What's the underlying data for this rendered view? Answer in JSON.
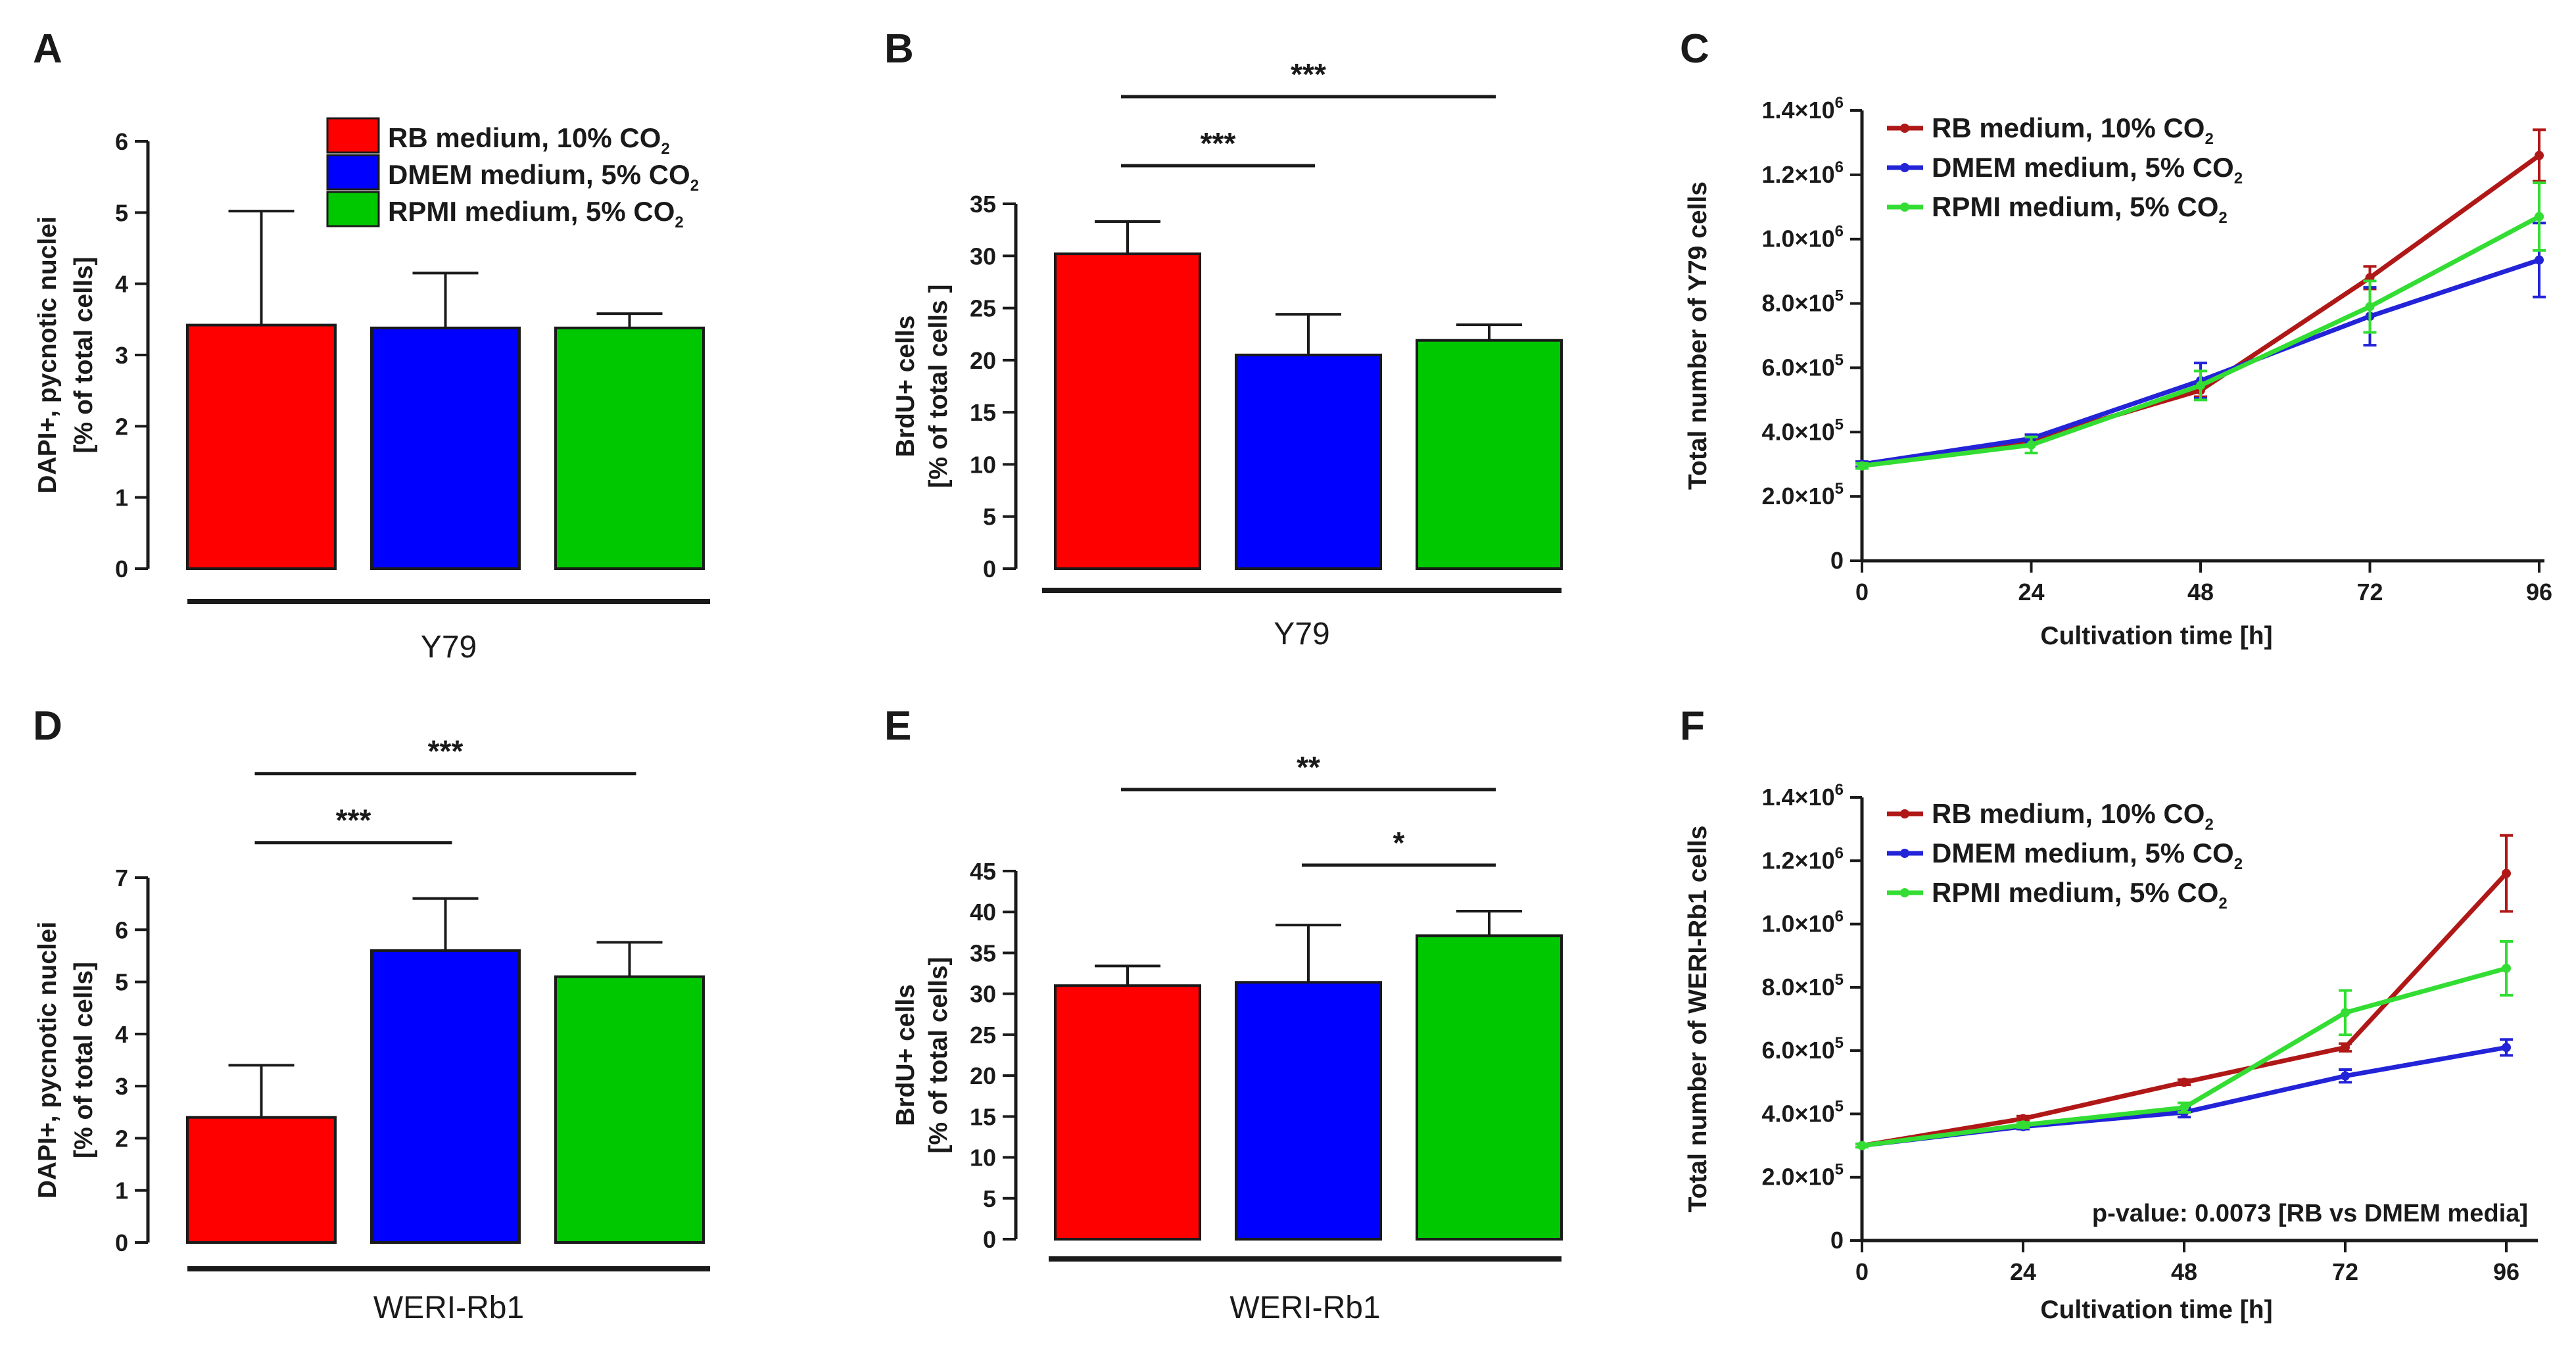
{
  "colors": {
    "red": "#ff0000",
    "blue": "#0000ff",
    "green": "#00c800",
    "dark_red": "#b01818",
    "line_blue": "#2323d8",
    "line_green": "#33dd33",
    "axis": "#1a1a1a"
  },
  "panels": {
    "A": {
      "letter": "A"
    },
    "B": {
      "letter": "B"
    },
    "C": {
      "letter": "C"
    },
    "D": {
      "letter": "D"
    },
    "E": {
      "letter": "E"
    },
    "F": {
      "letter": "F"
    }
  },
  "legend_A": {
    "items": [
      {
        "text": "RB medium, 10% CO",
        "sub": "2",
        "color": "#ff0000"
      },
      {
        "text": "DMEM medium, 5% CO",
        "sub": "2",
        "color": "#0000ff"
      },
      {
        "text": "RPMI medium, 5% CO",
        "sub": "2",
        "color": "#00c800"
      }
    ]
  },
  "f_note": "p-value: 0.0073 [RB vs DMEM media]",
  "chart_data": [
    {
      "id": "A",
      "type": "bar",
      "categories": [
        "RB medium, 10% CO2",
        "DMEM medium, 5% CO2",
        "RPMI medium, 5% CO2"
      ],
      "values": [
        3.42,
        3.38,
        3.38
      ],
      "errors": [
        1.6,
        0.77,
        0.2
      ],
      "colors": [
        "#ff0000",
        "#0000ff",
        "#00c800"
      ],
      "ylabel": [
        "DAPI+, pycnotic nuclei",
        "[% of total cells]"
      ],
      "group_label": "Y79",
      "ylim": [
        0,
        6
      ],
      "yticks": [
        "0",
        "1",
        "2",
        "3",
        "4",
        "5",
        "6"
      ],
      "significance": []
    },
    {
      "id": "B",
      "type": "bar",
      "categories": [
        "RB medium, 10% CO2",
        "DMEM medium, 5% CO2",
        "RPMI medium, 5% CO2"
      ],
      "values": [
        30.2,
        20.5,
        21.9
      ],
      "errors": [
        3.1,
        3.9,
        1.5
      ],
      "colors": [
        "#ff0000",
        "#0000ff",
        "#00c800"
      ],
      "ylabel": [
        "BrdU+ cells",
        "[% of total cells ]"
      ],
      "group_label": "Y79",
      "ylim": [
        0,
        35
      ],
      "yticks": [
        "0",
        "5",
        "10",
        "15",
        "20",
        "25",
        "30",
        "35"
      ],
      "significance": [
        {
          "from": 0,
          "to": 1,
          "label": "***"
        },
        {
          "from": 0,
          "to": 2,
          "label": "***"
        }
      ]
    },
    {
      "id": "C",
      "type": "line",
      "x": [
        0,
        24,
        48,
        72,
        96
      ],
      "xticks": [
        "0",
        "24",
        "48",
        "72",
        "96"
      ],
      "xlabel": "Cultivation time [h]",
      "ylabel": "Total number of  Y79 cells",
      "ylim": [
        0,
        1400000
      ],
      "yticks": [
        {
          "mant": "0",
          "exp": ""
        },
        {
          "mant": "2.0×10",
          "exp": "5"
        },
        {
          "mant": "4.0×10",
          "exp": "5"
        },
        {
          "mant": "6.0×10",
          "exp": "5"
        },
        {
          "mant": "8.0×10",
          "exp": "5"
        },
        {
          "mant": "1.0×10",
          "exp": "6"
        },
        {
          "mant": "1.2×10",
          "exp": "6"
        },
        {
          "mant": "1.4×10",
          "exp": "6"
        }
      ],
      "series": [
        {
          "name": "RB medium, 10% CO",
          "sub": "2",
          "color": "#b01818",
          "values": [
            300000,
            375000,
            530000,
            880000,
            1260000
          ],
          "errors": [
            8000,
            12000,
            20000,
            35000,
            80000
          ]
        },
        {
          "name": "DMEM medium, 5% CO",
          "sub": "2",
          "color": "#2323d8",
          "values": [
            300000,
            380000,
            560000,
            760000,
            935000
          ],
          "errors": [
            8000,
            12000,
            55000,
            90000,
            115000
          ]
        },
        {
          "name": "RPMI medium, 5% CO",
          "sub": "2",
          "color": "#33dd33",
          "values": [
            295000,
            360000,
            545000,
            790000,
            1070000
          ],
          "errors": [
            8000,
            25000,
            45000,
            80000,
            105000
          ]
        }
      ],
      "legend": "top-left"
    },
    {
      "id": "D",
      "type": "bar",
      "categories": [
        "RB medium, 10% CO2",
        "DMEM medium, 5% CO2",
        "RPMI medium, 5% CO2"
      ],
      "values": [
        2.4,
        5.6,
        5.1
      ],
      "errors": [
        1.0,
        1.0,
        0.66
      ],
      "colors": [
        "#ff0000",
        "#0000ff",
        "#00c800"
      ],
      "ylabel": [
        "DAPI+, pycnotic nuclei",
        "[% of total cells]"
      ],
      "group_label": "WERI-Rb1",
      "ylim": [
        0,
        7
      ],
      "yticks": [
        "0",
        "1",
        "2",
        "3",
        "4",
        "5",
        "6",
        "7"
      ],
      "significance": [
        {
          "from": 0,
          "to": 1,
          "label": "***"
        },
        {
          "from": 0,
          "to": 2,
          "label": "***"
        }
      ]
    },
    {
      "id": "E",
      "type": "bar",
      "categories": [
        "RB medium, 10% CO2",
        "DMEM medium, 5% CO2",
        "RPMI medium, 5% CO2"
      ],
      "values": [
        31.0,
        31.4,
        37.1
      ],
      "errors": [
        2.4,
        7.0,
        3.0
      ],
      "colors": [
        "#ff0000",
        "#0000ff",
        "#00c800"
      ],
      "ylabel": [
        "BrdU+ cells",
        "[% of total cells]"
      ],
      "group_label": "WERI-Rb1",
      "ylim": [
        0,
        45
      ],
      "yticks": [
        "0",
        "5",
        "10",
        "15",
        "20",
        "25",
        "30",
        "35",
        "40",
        "45"
      ],
      "significance": [
        {
          "from": 0,
          "to": 2,
          "label": "**"
        },
        {
          "from": 1,
          "to": 2,
          "label": "*"
        }
      ]
    },
    {
      "id": "F",
      "type": "line",
      "x": [
        0,
        24,
        48,
        72,
        96
      ],
      "xticks": [
        "0",
        "24",
        "48",
        "72",
        "96"
      ],
      "xlabel": "Cultivation time [h]",
      "ylabel": "Total number of  WERI-Rb1 cells",
      "ylim": [
        0,
        1400000
      ],
      "yticks": [
        {
          "mant": "0",
          "exp": ""
        },
        {
          "mant": "2.0×10",
          "exp": "5"
        },
        {
          "mant": "4.0×10",
          "exp": "5"
        },
        {
          "mant": "6.0×10",
          "exp": "5"
        },
        {
          "mant": "8.0×10",
          "exp": "5"
        },
        {
          "mant": "1.0×10",
          "exp": "6"
        },
        {
          "mant": "1.2×10",
          "exp": "6"
        },
        {
          "mant": "1.4×10",
          "exp": "6"
        }
      ],
      "series": [
        {
          "name": "RB medium, 10% CO",
          "sub": "2",
          "color": "#b01818",
          "values": [
            300000,
            385000,
            500000,
            610000,
            1160000
          ],
          "errors": [
            5000,
            8000,
            8000,
            12000,
            120000
          ]
        },
        {
          "name": "DMEM medium, 5% CO",
          "sub": "2",
          "color": "#2323d8",
          "values": [
            300000,
            360000,
            405000,
            520000,
            610000
          ],
          "errors": [
            5000,
            8000,
            15000,
            20000,
            25000
          ]
        },
        {
          "name": "RPMI medium, 5% CO",
          "sub": "2",
          "color": "#33dd33",
          "values": [
            300000,
            365000,
            420000,
            720000,
            860000
          ],
          "errors": [
            5000,
            8000,
            15000,
            70000,
            85000
          ]
        }
      ],
      "legend": "top-left"
    }
  ]
}
